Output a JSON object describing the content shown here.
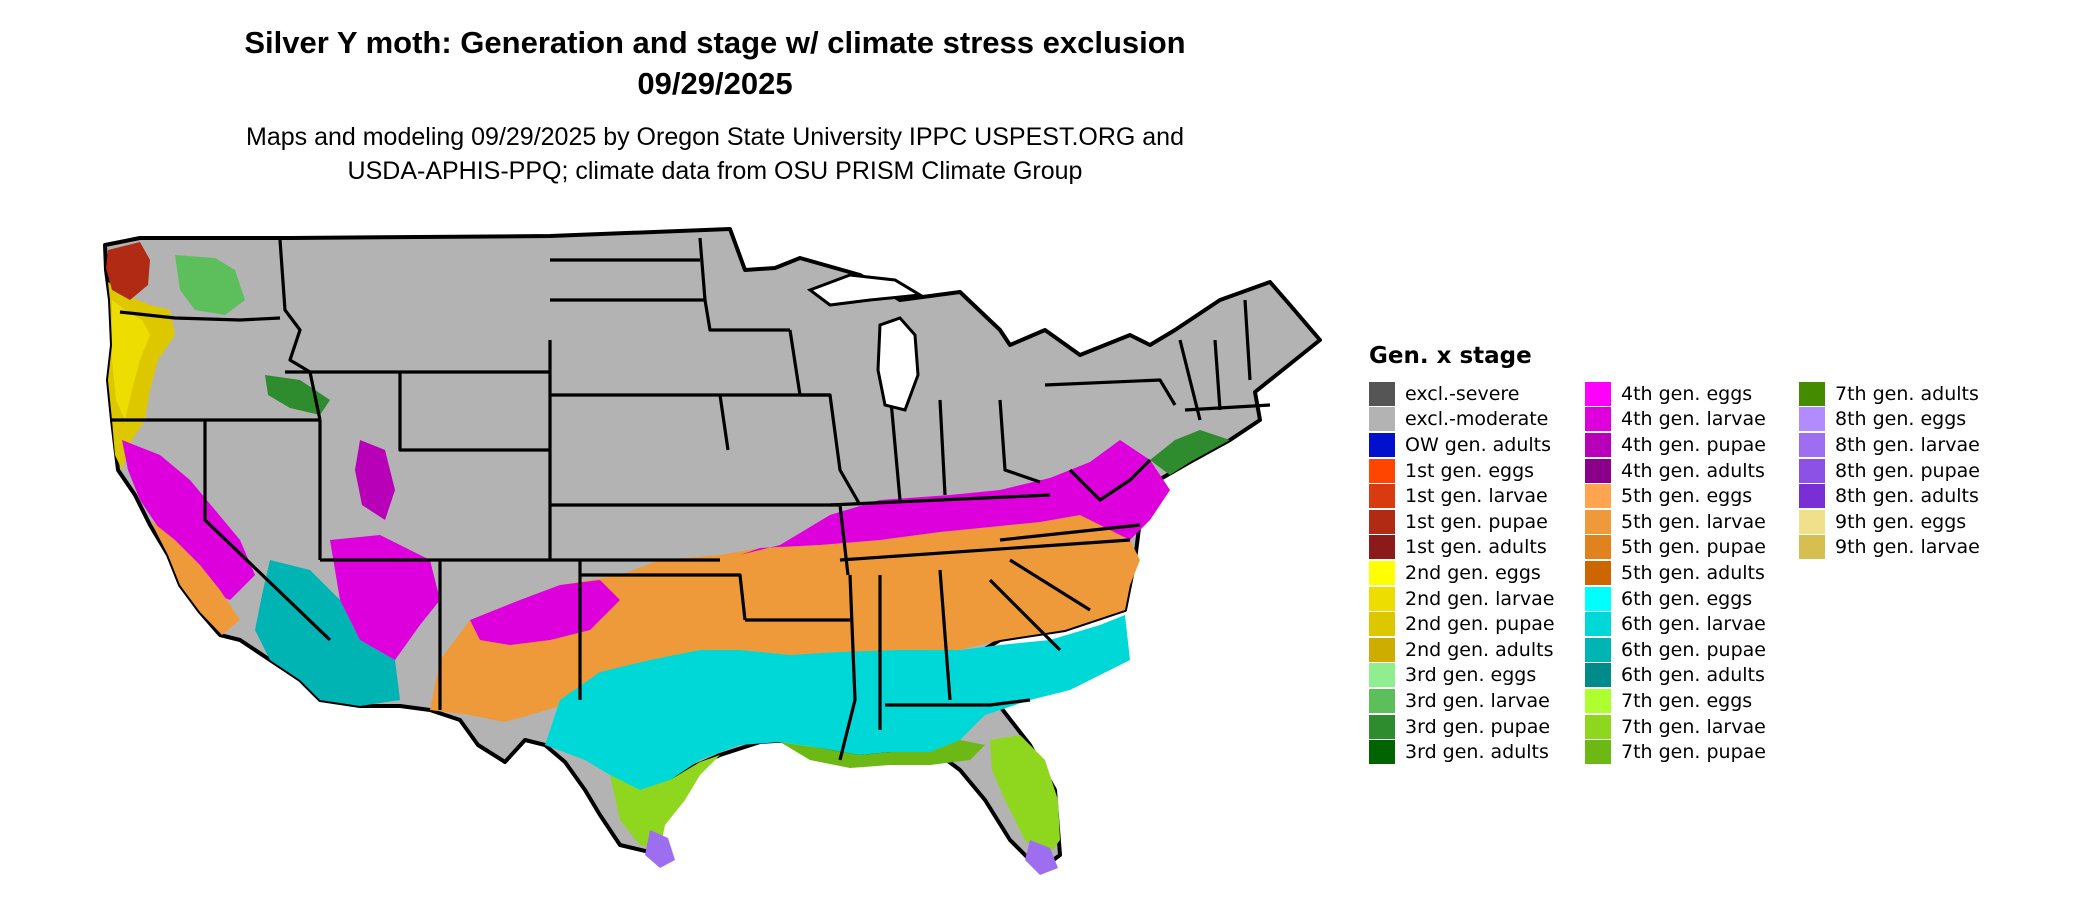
{
  "header": {
    "title_line1": "Silver Y moth: Generation and stage w/ climate stress exclusion",
    "title_line2": "09/29/2025",
    "subtitle_line1": "Maps and modeling 09/29/2025 by Oregon State University IPPC USPEST.ORG and",
    "subtitle_line2": "USDA-APHIS-PPQ; climate data from OSU PRISM Climate Group"
  },
  "colors": {
    "background": "#ffffff",
    "excluded_land": "#b3b3b3",
    "borders": "#000000"
  },
  "legend": {
    "title": "Gen. x stage",
    "columns": [
      [
        {
          "label": "excl.-severe",
          "color": "#555555"
        },
        {
          "label": "excl.-moderate",
          "color": "#b3b3b3"
        },
        {
          "label": "OW gen. adults",
          "color": "#0010cc"
        },
        {
          "label": "1st gen. eggs",
          "color": "#ff4500"
        },
        {
          "label": "1st gen. larvae",
          "color": "#d93a10"
        },
        {
          "label": "1st gen. pupae",
          "color": "#b02a14"
        },
        {
          "label": "1st gen. adults",
          "color": "#8b1a1a"
        },
        {
          "label": "2nd gen. eggs",
          "color": "#ffff00"
        },
        {
          "label": "2nd gen. larvae",
          "color": "#eedd00"
        },
        {
          "label": "2nd gen. pupae",
          "color": "#ddc800"
        },
        {
          "label": "2nd gen. adults",
          "color": "#cdad00"
        },
        {
          "label": "3rd gen. eggs",
          "color": "#90ee90"
        },
        {
          "label": "3rd gen. larvae",
          "color": "#5cbf5c"
        },
        {
          "label": "3rd gen. pupae",
          "color": "#2e8b2e"
        },
        {
          "label": "3rd gen. adults",
          "color": "#006400"
        }
      ],
      [
        {
          "label": "4th gen. eggs",
          "color": "#ff00ff"
        },
        {
          "label": "4th gen. larvae",
          "color": "#dd00dd"
        },
        {
          "label": "4th gen. pupae",
          "color": "#b800b8"
        },
        {
          "label": "4th gen. adults",
          "color": "#8b008b"
        },
        {
          "label": "5th gen. eggs",
          "color": "#ffa54f"
        },
        {
          "label": "5th gen. larvae",
          "color": "#ee9a3a"
        },
        {
          "label": "5th gen. pupae",
          "color": "#e0821e"
        },
        {
          "label": "5th gen. adults",
          "color": "#cd6600"
        },
        {
          "label": "6th gen. eggs",
          "color": "#00ffff"
        },
        {
          "label": "6th gen. larvae",
          "color": "#00d8d8"
        },
        {
          "label": "6th gen. pupae",
          "color": "#00b4b4"
        },
        {
          "label": "6th gen. adults",
          "color": "#008b8b"
        },
        {
          "label": "7th gen. eggs",
          "color": "#adff2f"
        },
        {
          "label": "7th gen. larvae",
          "color": "#8fd61e"
        },
        {
          "label": "7th gen. pupae",
          "color": "#6cb814"
        }
      ],
      [
        {
          "label": "7th gen. adults",
          "color": "#458b00"
        },
        {
          "label": "8th gen. eggs",
          "color": "#b08cff"
        },
        {
          "label": "8th gen. larvae",
          "color": "#9d6ff0"
        },
        {
          "label": "8th gen. pupae",
          "color": "#8c52e6"
        },
        {
          "label": "8th gen. adults",
          "color": "#7a2ed6"
        },
        {
          "label": "9th gen. eggs",
          "color": "#f0e08c"
        },
        {
          "label": "9th gen. larvae",
          "color": "#d4bf50"
        }
      ]
    ]
  }
}
